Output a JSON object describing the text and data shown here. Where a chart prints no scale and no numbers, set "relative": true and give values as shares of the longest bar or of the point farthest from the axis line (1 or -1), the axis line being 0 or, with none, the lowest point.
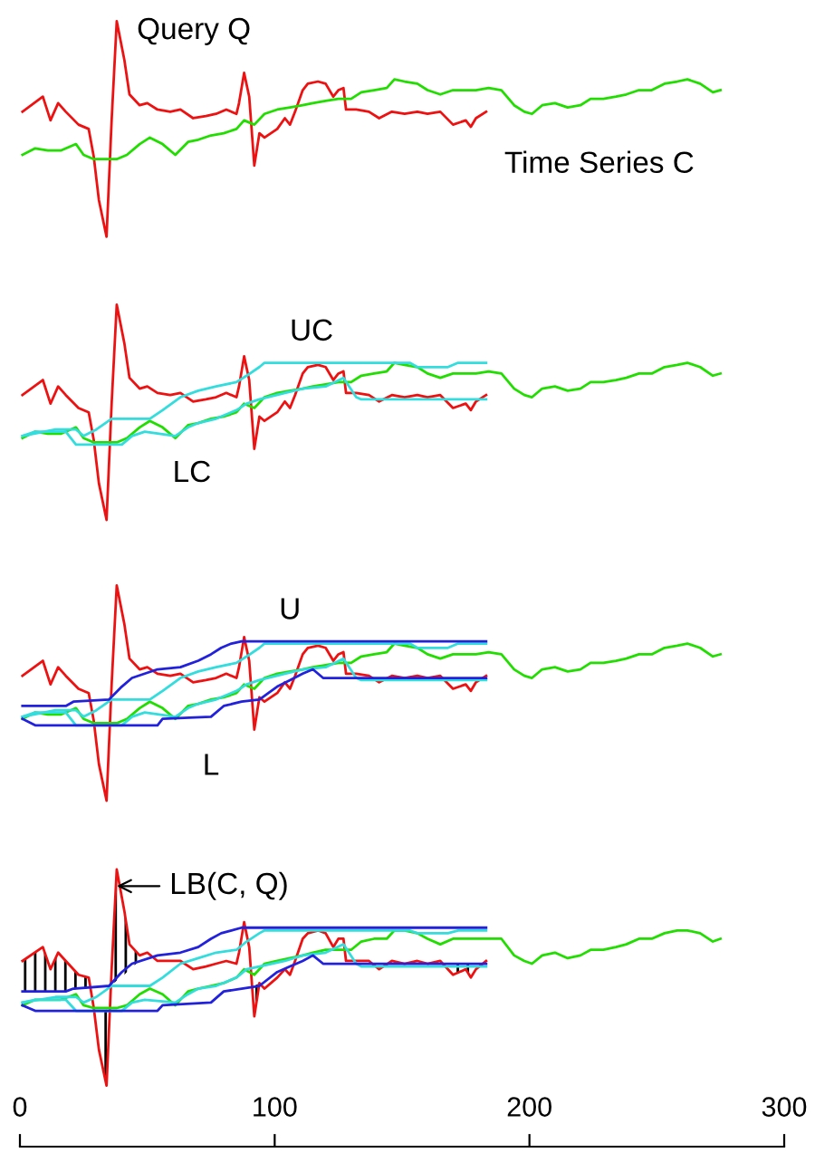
{
  "chart_data": [
    {
      "type": "line",
      "relative": true,
      "xlim": [
        0,
        300
      ],
      "tick_labels": false,
      "annotations": [
        {
          "text": "Query Q",
          "x": 38,
          "y": 1
        },
        {
          "text": "Time Series C",
          "x": 262,
          "y": 0.73
        }
      ],
      "series": [
        {
          "color": "#ee1111",
          "x": [
            1,
            9,
            12,
            15,
            18,
            23,
            27,
            29,
            31,
            34,
            36,
            38,
            41,
            43,
            47,
            50,
            54,
            59,
            63,
            68,
            73,
            77,
            81,
            85,
            86,
            88,
            90,
            92,
            94,
            96,
            101,
            104,
            106,
            108,
            111,
            113,
            117,
            120,
            123,
            125,
            127,
            128,
            132,
            137,
            141,
            146,
            151,
            156,
            160,
            165,
            170,
            175,
            177,
            179,
            183
          ],
          "values": [
            0.58,
            0.65,
            0.54,
            0.62,
            0.58,
            0.52,
            0.5,
            0.37,
            0.17,
            0,
            0.54,
            1,
            0.82,
            0.66,
            0.61,
            0.62,
            0.59,
            0.58,
            0.59,
            0.55,
            0.56,
            0.57,
            0.59,
            0.57,
            0.62,
            0.76,
            0.65,
            0.33,
            0.48,
            0.46,
            0.5,
            0.55,
            0.52,
            0.58,
            0.68,
            0.71,
            0.72,
            0.71,
            0.65,
            0.68,
            0.69,
            0.59,
            0.59,
            0.58,
            0.55,
            0.58,
            0.57,
            0.58,
            0.57,
            0.58,
            0.52,
            0.54,
            0.51,
            0.55,
            0.58
          ]
        },
        {
          "color": "#22dd00",
          "x": [
            1,
            6,
            11,
            16,
            22,
            25,
            29,
            34,
            38,
            42,
            47,
            51,
            56,
            61,
            66,
            70,
            75,
            80,
            85,
            88,
            92,
            96,
            101,
            106,
            111,
            115,
            120,
            125,
            130,
            134,
            139,
            144,
            147,
            151,
            156,
            160,
            165,
            170,
            175,
            179,
            184,
            189,
            194,
            198,
            201,
            205,
            210,
            215,
            220,
            224,
            229,
            234,
            238,
            243,
            248,
            253,
            258,
            262,
            267,
            272,
            275
          ],
          "values": [
            0.38,
            0.41,
            0.4,
            0.4,
            0.43,
            0.38,
            0.36,
            0.36,
            0.36,
            0.38,
            0.43,
            0.46,
            0.43,
            0.38,
            0.44,
            0.45,
            0.47,
            0.48,
            0.5,
            0.54,
            0.52,
            0.57,
            0.59,
            0.6,
            0.61,
            0.62,
            0.63,
            0.64,
            0.64,
            0.67,
            0.68,
            0.69,
            0.73,
            0.72,
            0.71,
            0.68,
            0.66,
            0.68,
            0.68,
            0.68,
            0.69,
            0.68,
            0.61,
            0.58,
            0.57,
            0.61,
            0.62,
            0.6,
            0.61,
            0.64,
            0.64,
            0.65,
            0.66,
            0.68,
            0.68,
            0.71,
            0.72,
            0.73,
            0.71,
            0.67,
            0.68
          ]
        }
      ]
    },
    {
      "type": "line",
      "relative": true,
      "xlim": [
        0,
        300
      ],
      "tick_labels": false,
      "annotations": [
        {
          "text": "UC",
          "x": 100,
          "y": 0.73
        },
        {
          "text": "LC",
          "x": 55,
          "y": 0.4
        }
      ],
      "series": [
        {
          "color": "#ee1111",
          "x": [
            1,
            9,
            12,
            15,
            18,
            23,
            27,
            29,
            31,
            34,
            36,
            38,
            41,
            43,
            47,
            50,
            54,
            59,
            63,
            68,
            73,
            77,
            81,
            85,
            86,
            88,
            90,
            92,
            94,
            96,
            101,
            104,
            106,
            108,
            111,
            113,
            117,
            120,
            123,
            125,
            127,
            128,
            132,
            137,
            141,
            146,
            151,
            156,
            160,
            165,
            170,
            175,
            177,
            179,
            183
          ],
          "values": [
            0.58,
            0.65,
            0.54,
            0.62,
            0.58,
            0.52,
            0.5,
            0.37,
            0.17,
            0,
            0.54,
            1,
            0.82,
            0.66,
            0.61,
            0.62,
            0.59,
            0.58,
            0.59,
            0.55,
            0.56,
            0.57,
            0.59,
            0.57,
            0.62,
            0.76,
            0.65,
            0.33,
            0.48,
            0.46,
            0.5,
            0.55,
            0.52,
            0.58,
            0.68,
            0.71,
            0.72,
            0.71,
            0.65,
            0.68,
            0.69,
            0.59,
            0.59,
            0.58,
            0.55,
            0.58,
            0.57,
            0.58,
            0.57,
            0.58,
            0.52,
            0.54,
            0.51,
            0.55,
            0.58
          ]
        },
        {
          "color": "#22dd00",
          "x": [
            1,
            6,
            11,
            16,
            22,
            25,
            29,
            34,
            38,
            42,
            47,
            51,
            56,
            61,
            66,
            70,
            75,
            80,
            85,
            88,
            92,
            96,
            101,
            106,
            111,
            115,
            120,
            125,
            130,
            134,
            139,
            144,
            147,
            151,
            156,
            160,
            165,
            170,
            175,
            179,
            184,
            189,
            194,
            198,
            201,
            205,
            210,
            215,
            220,
            224,
            229,
            234,
            238,
            243,
            248,
            253,
            258,
            262,
            267,
            272,
            275
          ],
          "values": [
            0.38,
            0.41,
            0.4,
            0.4,
            0.43,
            0.38,
            0.36,
            0.36,
            0.36,
            0.38,
            0.43,
            0.46,
            0.43,
            0.38,
            0.44,
            0.45,
            0.47,
            0.48,
            0.5,
            0.54,
            0.52,
            0.57,
            0.59,
            0.6,
            0.61,
            0.62,
            0.63,
            0.64,
            0.64,
            0.67,
            0.68,
            0.69,
            0.73,
            0.72,
            0.71,
            0.68,
            0.66,
            0.68,
            0.68,
            0.68,
            0.69,
            0.68,
            0.61,
            0.58,
            0.57,
            0.61,
            0.62,
            0.6,
            0.61,
            0.64,
            0.64,
            0.65,
            0.66,
            0.68,
            0.68,
            0.71,
            0.72,
            0.73,
            0.71,
            0.67,
            0.68
          ]
        },
        {
          "color": "#33dddd",
          "x": [
            1,
            14,
            22,
            25,
            30,
            36,
            51,
            56,
            63,
            70,
            77,
            85,
            89,
            94,
            96,
            153,
            156,
            168,
            172,
            183
          ],
          "values": [
            0.39,
            0.42,
            0.42,
            0.39,
            0.42,
            0.47,
            0.47,
            0.51,
            0.57,
            0.6,
            0.62,
            0.64,
            0.67,
            0.71,
            0.73,
            0.73,
            0.71,
            0.71,
            0.73,
            0.73
          ]
        },
        {
          "color": "#33dddd",
          "x": [
            1,
            6,
            18,
            22,
            40,
            44,
            49,
            61,
            66,
            70,
            77,
            85,
            89,
            94,
            104,
            111,
            120,
            127,
            132,
            134,
            183
          ],
          "values": [
            0.39,
            0.41,
            0.41,
            0.35,
            0.35,
            0.39,
            0.41,
            0.39,
            0.43,
            0.45,
            0.47,
            0.51,
            0.54,
            0.56,
            0.59,
            0.61,
            0.62,
            0.66,
            0.57,
            0.56,
            0.56
          ]
        }
      ]
    },
    {
      "type": "line",
      "relative": true,
      "xlim": [
        0,
        300
      ],
      "tick_labels": false,
      "annotations": [
        {
          "text": "U",
          "x": 106,
          "y": 0.74
        },
        {
          "text": "L",
          "x": 75,
          "y": 0.39
        }
      ],
      "series": [
        {
          "color": "#ee1111",
          "x": [
            1,
            9,
            12,
            15,
            18,
            23,
            27,
            29,
            31,
            34,
            36,
            38,
            41,
            43,
            47,
            50,
            54,
            59,
            63,
            68,
            73,
            77,
            81,
            85,
            86,
            88,
            90,
            92,
            94,
            96,
            101,
            104,
            106,
            108,
            111,
            113,
            117,
            120,
            123,
            125,
            127,
            128,
            132,
            137,
            141,
            146,
            151,
            156,
            160,
            165,
            170,
            175,
            177,
            179,
            183
          ],
          "values": [
            0.58,
            0.65,
            0.54,
            0.62,
            0.58,
            0.52,
            0.5,
            0.37,
            0.17,
            0,
            0.54,
            1,
            0.82,
            0.66,
            0.61,
            0.62,
            0.59,
            0.58,
            0.59,
            0.55,
            0.56,
            0.57,
            0.59,
            0.57,
            0.62,
            0.76,
            0.65,
            0.33,
            0.48,
            0.46,
            0.5,
            0.55,
            0.52,
            0.58,
            0.68,
            0.71,
            0.72,
            0.71,
            0.65,
            0.68,
            0.69,
            0.59,
            0.59,
            0.58,
            0.55,
            0.58,
            0.57,
            0.58,
            0.57,
            0.58,
            0.52,
            0.54,
            0.51,
            0.55,
            0.58
          ]
        },
        {
          "color": "#22dd00",
          "x": [
            1,
            6,
            11,
            16,
            22,
            25,
            29,
            34,
            38,
            42,
            47,
            51,
            56,
            61,
            66,
            70,
            75,
            80,
            85,
            88,
            92,
            96,
            101,
            106,
            111,
            115,
            120,
            125,
            130,
            134,
            139,
            144,
            147,
            151,
            156,
            160,
            165,
            170,
            175,
            179,
            184,
            189,
            194,
            198,
            201,
            205,
            210,
            215,
            220,
            224,
            229,
            234,
            238,
            243,
            248,
            253,
            258,
            262,
            267,
            272,
            275
          ],
          "values": [
            0.38,
            0.41,
            0.4,
            0.4,
            0.43,
            0.38,
            0.36,
            0.36,
            0.36,
            0.38,
            0.43,
            0.46,
            0.43,
            0.38,
            0.44,
            0.45,
            0.47,
            0.48,
            0.5,
            0.54,
            0.52,
            0.57,
            0.59,
            0.6,
            0.61,
            0.62,
            0.63,
            0.64,
            0.64,
            0.67,
            0.68,
            0.69,
            0.73,
            0.72,
            0.71,
            0.68,
            0.66,
            0.68,
            0.68,
            0.68,
            0.69,
            0.68,
            0.61,
            0.58,
            0.57,
            0.61,
            0.62,
            0.6,
            0.61,
            0.64,
            0.64,
            0.65,
            0.66,
            0.68,
            0.68,
            0.71,
            0.72,
            0.73,
            0.71,
            0.67,
            0.68
          ]
        },
        {
          "color": "#33dddd",
          "x": [
            1,
            14,
            22,
            25,
            30,
            36,
            51,
            56,
            63,
            70,
            77,
            85,
            89,
            94,
            96,
            153,
            156,
            168,
            172,
            183
          ],
          "values": [
            0.39,
            0.42,
            0.42,
            0.39,
            0.42,
            0.47,
            0.47,
            0.51,
            0.57,
            0.6,
            0.62,
            0.64,
            0.67,
            0.71,
            0.73,
            0.73,
            0.71,
            0.71,
            0.73,
            0.73
          ]
        },
        {
          "color": "#33dddd",
          "x": [
            1,
            6,
            18,
            22,
            40,
            44,
            49,
            61,
            66,
            70,
            77,
            85,
            89,
            94,
            104,
            111,
            120,
            127,
            132,
            134,
            183
          ],
          "values": [
            0.39,
            0.41,
            0.41,
            0.35,
            0.35,
            0.39,
            0.41,
            0.39,
            0.43,
            0.45,
            0.47,
            0.51,
            0.54,
            0.56,
            0.59,
            0.61,
            0.62,
            0.66,
            0.57,
            0.56,
            0.56
          ]
        },
        {
          "color": "#2222dd",
          "x": [
            1,
            18,
            21,
            35,
            40,
            44,
            54,
            63,
            70,
            75,
            79,
            83,
            87,
            183
          ],
          "values": [
            0.44,
            0.44,
            0.46,
            0.47,
            0.53,
            0.57,
            0.61,
            0.62,
            0.65,
            0.68,
            0.71,
            0.73,
            0.74,
            0.74
          ]
        },
        {
          "color": "#2222dd",
          "x": [
            1,
            6,
            54,
            56,
            75,
            80,
            87,
            94,
            101,
            106,
            111,
            115,
            119,
            183
          ],
          "values": [
            0.38,
            0.35,
            0.35,
            0.38,
            0.39,
            0.44,
            0.46,
            0.47,
            0.53,
            0.56,
            0.59,
            0.61,
            0.57,
            0.57
          ]
        }
      ]
    },
    {
      "type": "line",
      "relative": true,
      "xlim": [
        0,
        300
      ],
      "xticks": [
        0,
        100,
        200,
        300
      ],
      "tick_labels": "x",
      "annotations": [
        {
          "text": "LB(C, Q)",
          "x": 38,
          "y": 0.94
        }
      ],
      "series": [
        {
          "color": "#ee1111",
          "lower": [
            0.56,
            0.56,
            0.56,
            0.56,
            0.56,
            0.57,
            0.57,
            null,
            0.35,
            0.22,
            0.58,
            0.6,
            0.62,
            0.64,
            0.67,
            null,
            null,
            null,
            null,
            null,
            null,
            null,
            null,
            null,
            null,
            null,
            null,
            0.47,
            0.58,
            null,
            null,
            null,
            null,
            null,
            null,
            null,
            null,
            null,
            null,
            null,
            null,
            null,
            null,
            null,
            null,
            null,
            null,
            null,
            null,
            null,
            0.62,
            0.64,
            0.61,
            0.64,
            null
          ],
          "upper": [
            0.67,
            0.72,
            0.64,
            0.7,
            0.67,
            0.62,
            0.61,
            null,
            0.49,
            0.49,
            0.64,
            1,
            0.85,
            0.73,
            0.69,
            null,
            null,
            null,
            null,
            null,
            null,
            null,
            null,
            null,
            null,
            null,
            null,
            0.58,
            0.59,
            null,
            null,
            null,
            null,
            null,
            null,
            null,
            null,
            null,
            null,
            null,
            null,
            null,
            null,
            null,
            null,
            null,
            null,
            null,
            null,
            null,
            0.66,
            0.66,
            0.66,
            0.66,
            null
          ],
          "x": [
            1,
            9,
            12,
            15,
            18,
            23,
            27,
            29,
            31,
            34,
            36,
            38,
            41,
            43,
            47,
            50,
            54,
            59,
            63,
            68,
            73,
            77,
            81,
            85,
            86,
            88,
            90,
            92,
            94,
            96,
            101,
            104,
            106,
            108,
            111,
            113,
            117,
            120,
            123,
            125,
            127,
            128,
            132,
            137,
            141,
            146,
            151,
            156,
            160,
            165,
            170,
            175,
            177,
            179,
            183
          ],
          "values": [
            0.67,
            0.72,
            0.64,
            0.7,
            0.67,
            0.62,
            0.61,
            0.5,
            0.35,
            0.22,
            0.64,
            1,
            0.85,
            0.73,
            0.69,
            0.7,
            0.67,
            0.67,
            0.67,
            0.64,
            0.65,
            0.66,
            0.67,
            0.66,
            0.7,
            0.81,
            0.72,
            0.47,
            0.59,
            0.57,
            0.61,
            0.64,
            0.62,
            0.67,
            0.75,
            0.77,
            0.78,
            0.77,
            0.72,
            0.75,
            0.75,
            0.67,
            0.67,
            0.67,
            0.64,
            0.67,
            0.66,
            0.67,
            0.66,
            0.67,
            0.62,
            0.64,
            0.61,
            0.64,
            0.67
          ]
        },
        {
          "color": "#22dd00",
          "x": [
            1,
            6,
            11,
            16,
            22,
            25,
            29,
            34,
            38,
            42,
            47,
            51,
            56,
            61,
            66,
            70,
            75,
            80,
            85,
            88,
            92,
            96,
            101,
            106,
            111,
            115,
            120,
            125,
            130,
            134,
            139,
            144,
            147,
            151,
            156,
            160,
            165,
            170,
            175,
            179,
            184,
            189,
            194,
            198,
            201,
            205,
            210,
            215,
            220,
            224,
            229,
            234,
            238,
            243,
            248,
            253,
            258,
            262,
            267,
            272,
            275
          ],
          "values": [
            0.51,
            0.53,
            0.53,
            0.53,
            0.55,
            0.51,
            0.5,
            0.5,
            0.5,
            0.51,
            0.55,
            0.57,
            0.55,
            0.51,
            0.56,
            0.57,
            0.58,
            0.59,
            0.61,
            0.64,
            0.62,
            0.66,
            0.67,
            0.68,
            0.69,
            0.7,
            0.71,
            0.71,
            0.71,
            0.74,
            0.75,
            0.75,
            0.78,
            0.78,
            0.77,
            0.75,
            0.73,
            0.75,
            0.75,
            0.75,
            0.75,
            0.75,
            0.69,
            0.67,
            0.66,
            0.69,
            0.7,
            0.68,
            0.69,
            0.71,
            0.71,
            0.72,
            0.73,
            0.75,
            0.75,
            0.77,
            0.78,
            0.78,
            0.77,
            0.74,
            0.75
          ]
        },
        {
          "color": "#33dddd",
          "x": [
            1,
            14,
            22,
            25,
            30,
            36,
            51,
            56,
            63,
            70,
            77,
            85,
            89,
            94,
            96,
            153,
            156,
            168,
            172,
            183
          ],
          "values": [
            0.52,
            0.54,
            0.54,
            0.52,
            0.54,
            0.58,
            0.58,
            0.61,
            0.66,
            0.68,
            0.7,
            0.71,
            0.74,
            0.77,
            0.78,
            0.78,
            0.77,
            0.77,
            0.78,
            0.78
          ]
        },
        {
          "color": "#33dddd",
          "x": [
            1,
            6,
            18,
            22,
            40,
            44,
            49,
            61,
            66,
            70,
            77,
            85,
            89,
            94,
            104,
            111,
            120,
            127,
            132,
            134,
            183
          ],
          "values": [
            0.52,
            0.53,
            0.53,
            0.49,
            0.49,
            0.52,
            0.53,
            0.52,
            0.55,
            0.57,
            0.58,
            0.61,
            0.64,
            0.65,
            0.67,
            0.69,
            0.7,
            0.73,
            0.66,
            0.65,
            0.65
          ]
        },
        {
          "color": "#2222dd",
          "x": [
            1,
            18,
            21,
            35,
            40,
            44,
            54,
            63,
            70,
            75,
            79,
            83,
            87,
            183
          ],
          "values": [
            0.56,
            0.56,
            0.57,
            0.58,
            0.63,
            0.66,
            0.69,
            0.7,
            0.72,
            0.75,
            0.77,
            0.78,
            0.79,
            0.79
          ]
        },
        {
          "color": "#2222dd",
          "x": [
            1,
            6,
            54,
            56,
            75,
            80,
            87,
            94,
            101,
            106,
            111,
            115,
            119,
            183
          ],
          "values": [
            0.51,
            0.49,
            0.49,
            0.51,
            0.52,
            0.56,
            0.57,
            0.58,
            0.63,
            0.65,
            0.67,
            0.69,
            0.66,
            0.66
          ]
        }
      ]
    }
  ]
}
